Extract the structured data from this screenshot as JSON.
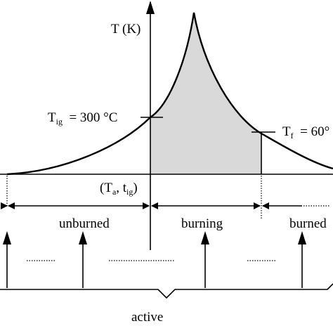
{
  "axis": {
    "y_label": "T (K)"
  },
  "labels": {
    "t_ig_symbol": "T",
    "t_ig_sub": "ig",
    "t_ig_value": "= 300 °C",
    "t_f_symbol": "T",
    "t_f_sub": "f",
    "t_f_value": "= 60°",
    "origin_open": "(T",
    "origin_a": "a",
    "origin_mid": ", t",
    "origin_ig": "ig",
    "origin_close": ")"
  },
  "zones": {
    "unburned": "unburned",
    "burning": "burning",
    "burned": "burned"
  },
  "brace_label": "active",
  "colors": {
    "stroke": "#000000",
    "fill": "#d9d9d9"
  }
}
